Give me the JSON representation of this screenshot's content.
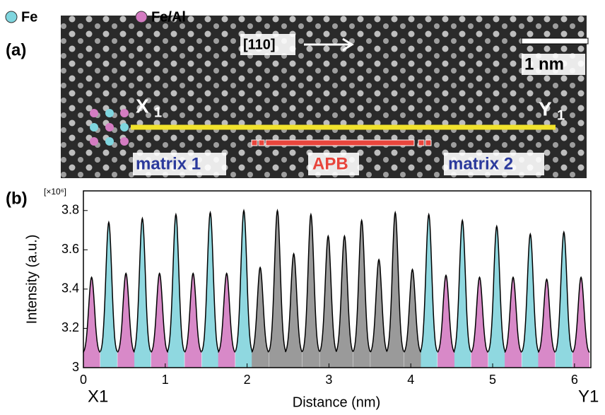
{
  "panel_a": {
    "label": "(a)",
    "legend": [
      "Fe",
      "Fe/Al"
    ],
    "direction": "[110]",
    "scale_bar": "1 nm",
    "x_label": "X",
    "x_sub": "1",
    "y_label": "Y",
    "y_sub": "1",
    "regions": [
      "matrix 1",
      "APB",
      "matrix 2"
    ]
  },
  "chart_data": {
    "type": "peaks",
    "panel_label": "(b)",
    "multiplier": "[×10⁶]",
    "xlabel": "Distance (nm)",
    "ylabel": "Intensity (a.u.)",
    "start_label": "X1",
    "end_label": "Y1",
    "xlim": [
      0,
      6.2
    ],
    "ylim": [
      3,
      3.9
    ],
    "xticks": [
      0,
      1,
      2,
      3,
      4,
      5,
      6
    ],
    "yticks": [
      3,
      3.2,
      3.4,
      3.6,
      3.8
    ],
    "series": [
      {
        "name": "Fe",
        "color": "#8fd8e0",
        "x": [
          0.31,
          0.72,
          1.13,
          1.55,
          1.96,
          4.22,
          4.63,
          5.05,
          5.46,
          5.87
        ],
        "values": [
          3.74,
          3.76,
          3.78,
          3.79,
          3.8,
          3.78,
          3.75,
          3.72,
          3.68,
          3.69
        ]
      },
      {
        "name": "Fe/Al",
        "color": "#d889c8",
        "x": [
          0.1,
          0.52,
          0.93,
          1.34,
          1.75,
          4.43,
          4.84,
          5.25,
          5.66,
          6.08
        ],
        "values": [
          3.46,
          3.48,
          3.48,
          3.48,
          3.48,
          3.47,
          3.46,
          3.46,
          3.45,
          3.46
        ]
      },
      {
        "name": "APB",
        "color": "#9a9a9a",
        "x": [
          2.16,
          2.37,
          2.57,
          2.78,
          2.99,
          3.19,
          3.4,
          3.61,
          3.81,
          4.02
        ],
        "values": [
          3.51,
          3.8,
          3.58,
          3.78,
          3.67,
          3.67,
          3.75,
          3.55,
          3.79,
          3.5
        ]
      }
    ]
  }
}
